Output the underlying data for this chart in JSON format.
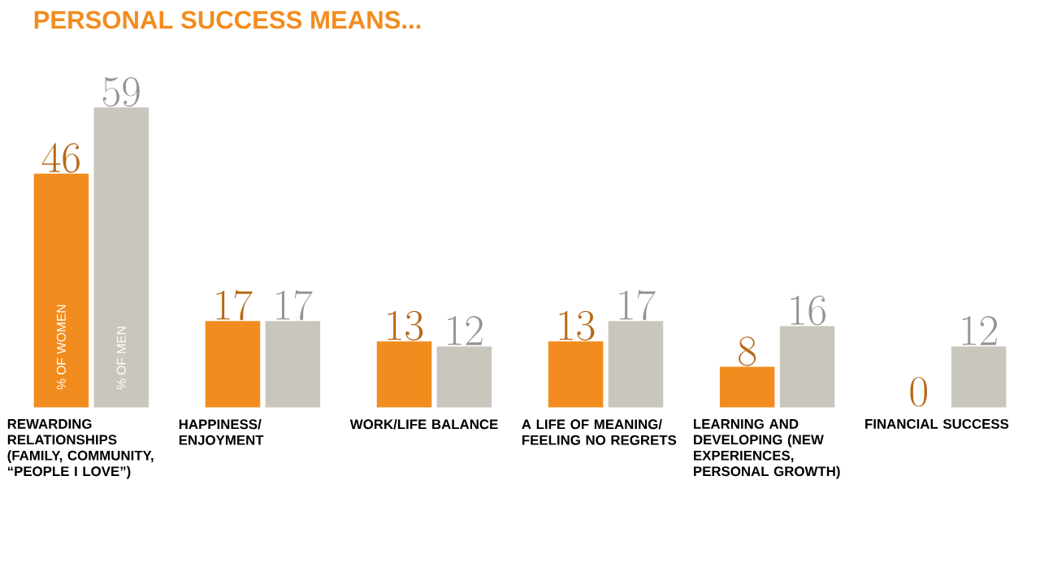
{
  "chart_data": {
    "type": "bar",
    "title": "PERSONAL SUCCESS MEANS...",
    "categories": [
      "REWARDING RELATIONSHIPS (FAMILY, COMMUNITY, “PEOPLE I LOVE”)",
      "HAPPINESS/ ENJOYMENT",
      "WORK/LIFE BALANCE",
      "A LIFE OF MEANING/ FEELING NO REGRETS",
      "LEARNING AND DEVELOPING (NEW EXPERIENCES, PERSONAL GROWTH)",
      "FINANCIAL SUCCESS"
    ],
    "series": [
      {
        "name": "% OF WOMEN",
        "color": "#f28c1e",
        "values": [
          46,
          17,
          13,
          13,
          8,
          0
        ]
      },
      {
        "name": "% OF MEN",
        "color": "#c9c6bd",
        "values": [
          59,
          17,
          12,
          17,
          16,
          12
        ]
      }
    ],
    "data_labels": true
  }
}
